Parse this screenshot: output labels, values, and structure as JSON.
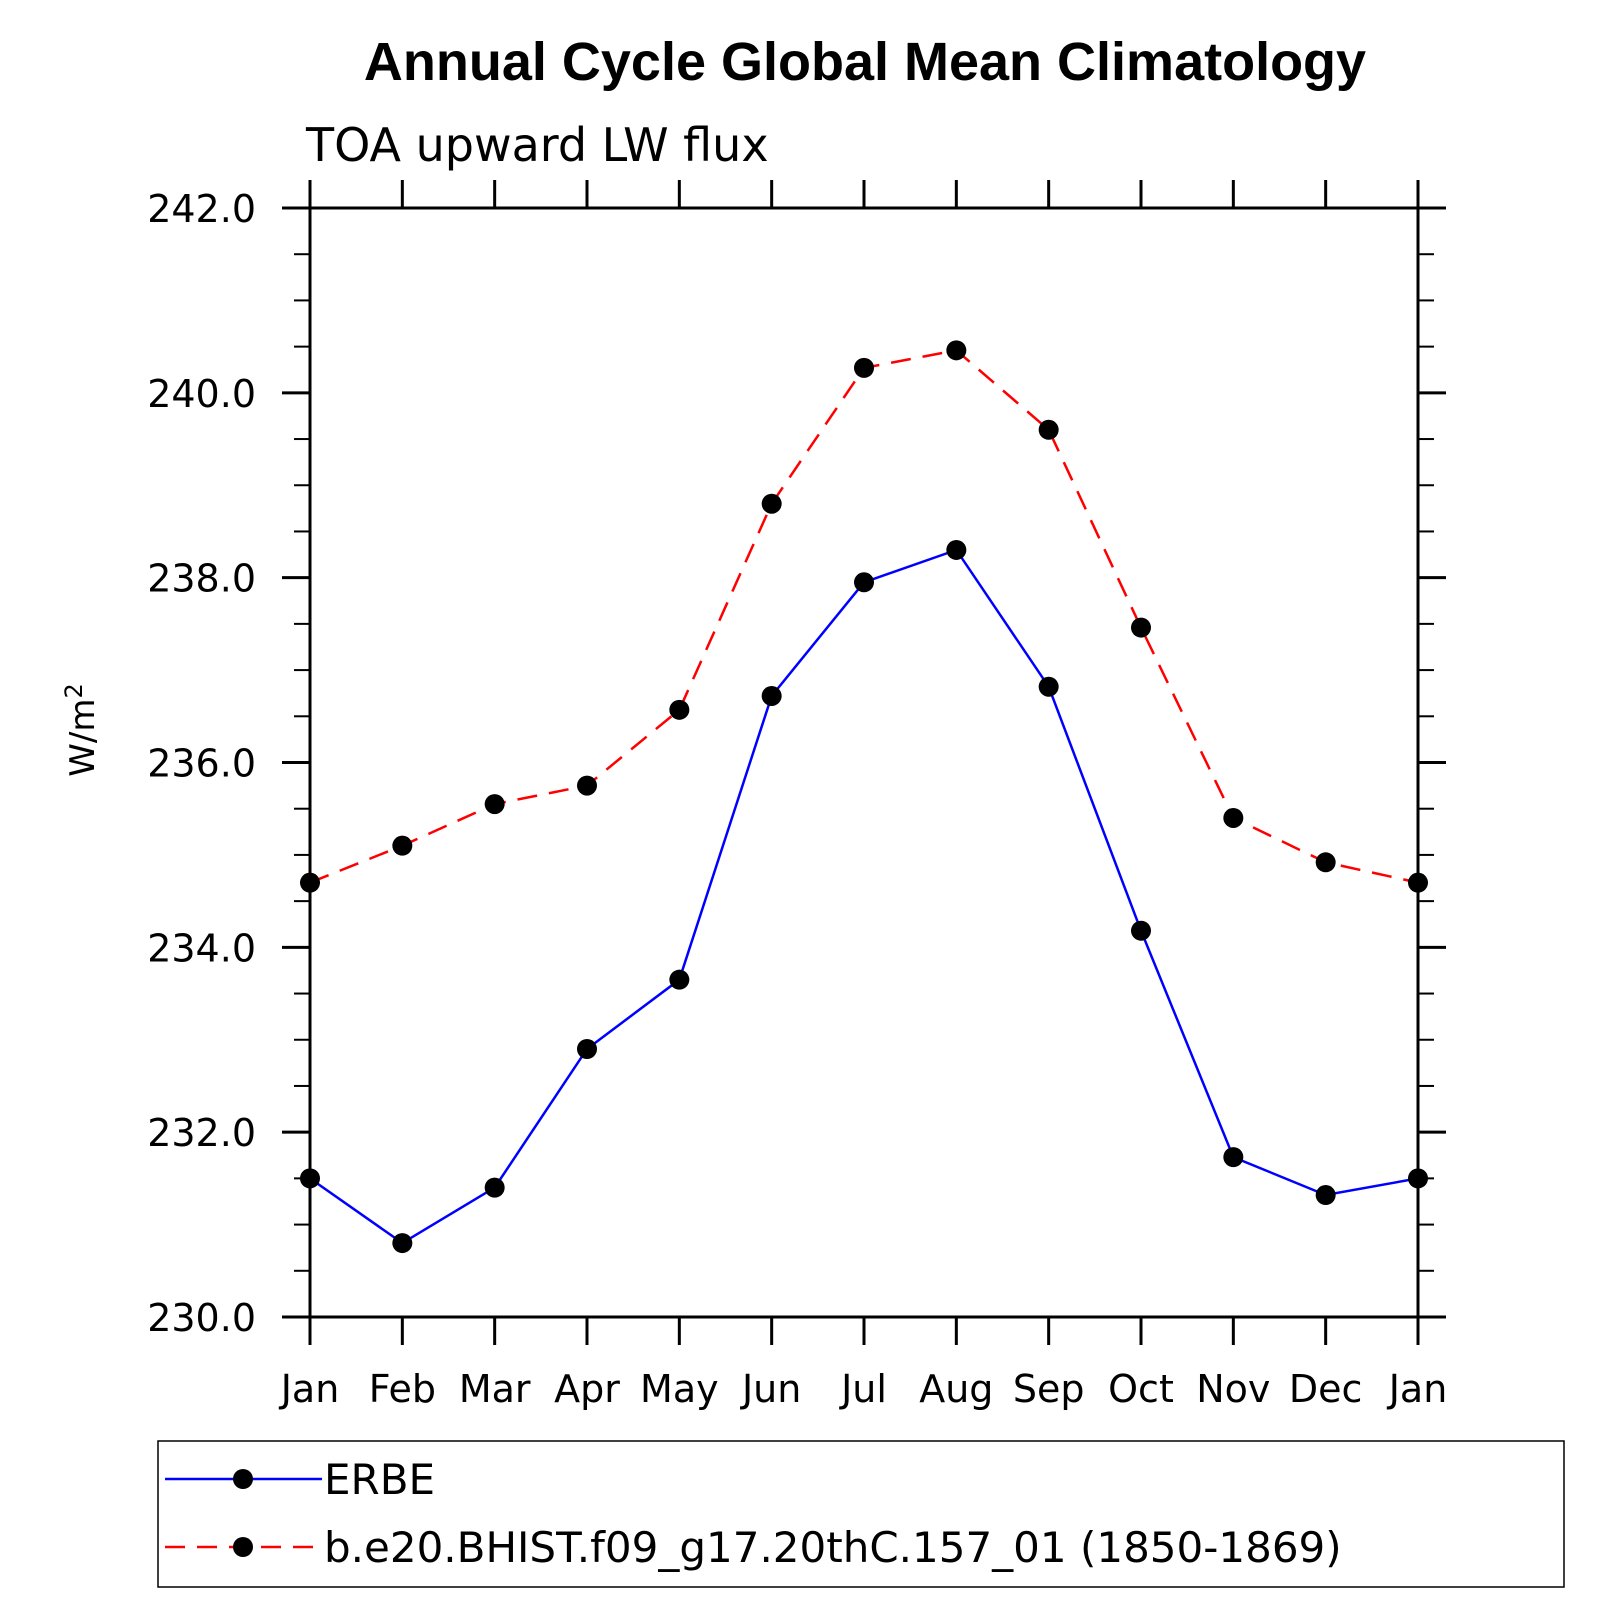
{
  "chart_data": {
    "type": "line",
    "title": "Annual Cycle Global Mean Climatology",
    "subtitle": "TOA upward LW flux",
    "ylabel": "W/m",
    "ylabel_superscript": "2",
    "categories": [
      "Jan",
      "Feb",
      "Mar",
      "Apr",
      "May",
      "Jun",
      "Jul",
      "Aug",
      "Sep",
      "Oct",
      "Nov",
      "Dec",
      "Jan"
    ],
    "ylim": [
      230.0,
      242.0
    ],
    "yticks": [
      "230.0",
      "232.0",
      "234.0",
      "236.0",
      "238.0",
      "240.0",
      "242.0"
    ],
    "grid": false,
    "legend_position": "bottom",
    "series": [
      {
        "name": "ERBE",
        "color": "#0000ff",
        "dash": "solid",
        "values": [
          231.5,
          230.8,
          231.4,
          232.9,
          233.65,
          236.72,
          237.95,
          238.3,
          236.82,
          234.18,
          231.73,
          231.32,
          231.5
        ]
      },
      {
        "name": "b.e20.BHIST.f09_g17.20thC.157_01 (1850-1869)",
        "color": "#ff0000",
        "dash": "dashed",
        "values": [
          234.7,
          235.1,
          235.55,
          235.75,
          236.57,
          238.8,
          240.27,
          240.46,
          239.6,
          237.46,
          235.4,
          234.92,
          234.7
        ]
      }
    ],
    "marker_color": "#000000"
  }
}
